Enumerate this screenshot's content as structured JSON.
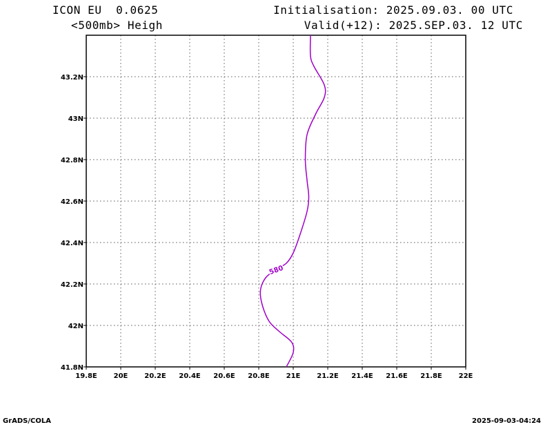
{
  "header": {
    "model": "ICON EU  0.0625",
    "variable": "<500mb> Heigh",
    "init": "Initialisation: 2025.09.03. 00 UTC",
    "valid": "Valid(+12): 2025.SEP.03. 12 UTC"
  },
  "footer": {
    "left": "GrADS/COLA",
    "right": "2025-09-03-04:24"
  },
  "chart_data": {
    "type": "line",
    "xlim": [
      19.8,
      22.0
    ],
    "ylim": [
      41.8,
      43.4
    ],
    "x_ticks": [
      19.8,
      20.0,
      20.2,
      20.4,
      20.6,
      20.8,
      21.0,
      21.2,
      21.4,
      21.6,
      21.8,
      22.0
    ],
    "x_tick_labels": [
      "19.8E",
      "20E",
      "20.2E",
      "20.4E",
      "20.6E",
      "20.8E",
      "21E",
      "21.2E",
      "21.4E",
      "21.6E",
      "21.8E",
      "22E"
    ],
    "y_ticks": [
      41.8,
      42.0,
      42.2,
      42.4,
      42.6,
      42.8,
      43.0,
      43.2
    ],
    "y_tick_labels": [
      "41.8N",
      "42N",
      "42.2N",
      "42.4N",
      "42.6N",
      "42.8N",
      "43N",
      "43.2N"
    ],
    "grid": true,
    "line_color": "#a000c8",
    "series": [
      {
        "label": "580",
        "label_at": [
          20.9,
          42.27
        ],
        "points": [
          [
            20.96,
            41.8
          ],
          [
            21.0,
            41.87
          ],
          [
            20.99,
            41.92
          ],
          [
            20.92,
            41.97
          ],
          [
            20.86,
            42.02
          ],
          [
            20.82,
            42.1
          ],
          [
            20.81,
            42.17
          ],
          [
            20.84,
            42.23
          ],
          [
            20.9,
            42.27
          ],
          [
            20.96,
            42.3
          ],
          [
            21.0,
            42.35
          ],
          [
            21.04,
            42.44
          ],
          [
            21.08,
            42.55
          ],
          [
            21.09,
            42.62
          ],
          [
            21.08,
            42.7
          ],
          [
            21.07,
            42.8
          ],
          [
            21.08,
            42.92
          ],
          [
            21.13,
            43.02
          ],
          [
            21.18,
            43.1
          ],
          [
            21.18,
            43.16
          ],
          [
            21.12,
            43.25
          ],
          [
            21.1,
            43.3
          ],
          [
            21.1,
            43.4
          ]
        ]
      }
    ]
  }
}
